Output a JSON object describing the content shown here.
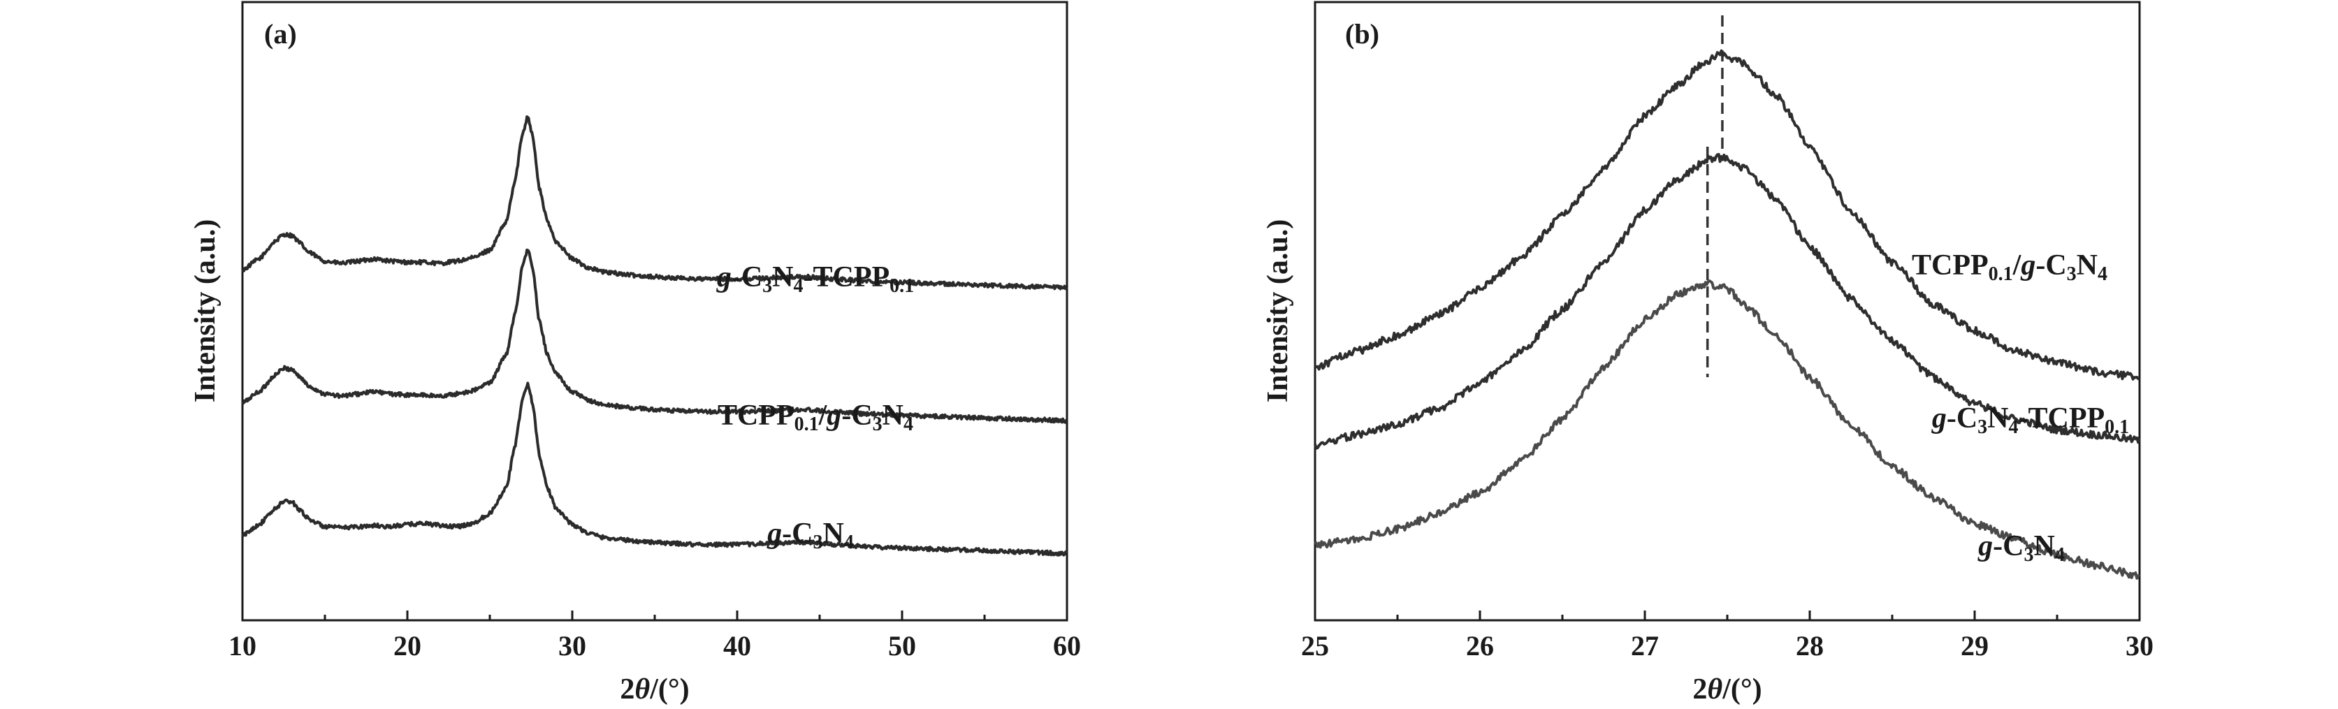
{
  "chart_data": [
    {
      "panel": "(a)",
      "type": "line",
      "xlabel_main": "2",
      "xlabel_theta": "θ",
      "xlabel_unit": "/(°)",
      "ylabel": "Intensity (a.u.)",
      "xlim": [
        10,
        60
      ],
      "xticks": [
        10,
        20,
        30,
        40,
        50,
        60
      ],
      "yticks_shown": false,
      "grid": false,
      "series": [
        {
          "name": "g-C3N4-TCPP0.1",
          "label_parts": [
            [
              "g",
              "it"
            ],
            [
              "-C",
              ""
            ],
            [
              "3",
              "sub"
            ],
            [
              "N",
              ""
            ],
            [
              "4",
              "sub"
            ],
            [
              "-TCPP",
              ""
            ],
            [
              "0.1",
              "sub"
            ]
          ],
          "color": "#2b2b2b",
          "offset": 2.2,
          "x": [
            10,
            11,
            12,
            12.5,
            13,
            13.5,
            14,
            15,
            16,
            17,
            18,
            19,
            20,
            21,
            22,
            23,
            24,
            25,
            26,
            26.5,
            27,
            27.3,
            27.6,
            28,
            28.5,
            29,
            30,
            31,
            32,
            34,
            36,
            38,
            40,
            42,
            44,
            46,
            48,
            50,
            52,
            54,
            56,
            58,
            60
          ],
          "y": [
            0.02,
            0.12,
            0.28,
            0.34,
            0.33,
            0.26,
            0.18,
            0.1,
            0.08,
            0.1,
            0.12,
            0.1,
            0.09,
            0.09,
            0.08,
            0.1,
            0.13,
            0.2,
            0.45,
            0.8,
            1.25,
            1.4,
            1.22,
            0.75,
            0.45,
            0.28,
            0.12,
            0.04,
            0.0,
            -0.03,
            -0.05,
            -0.06,
            -0.06,
            -0.05,
            -0.04,
            -0.06,
            -0.08,
            -0.09,
            -0.1,
            -0.11,
            -0.12,
            -0.13,
            -0.14
          ]
        },
        {
          "name": "TCPP0.1/g-C3N4",
          "label_parts": [
            [
              "TCPP",
              ""
            ],
            [
              "0.1",
              "sub"
            ],
            [
              "/",
              ""
            ],
            [
              "g",
              "it"
            ],
            [
              "-C",
              ""
            ],
            [
              "3",
              "sub"
            ],
            [
              "N",
              ""
            ],
            [
              "4",
              "sub"
            ]
          ],
          "color": "#2b2b2b",
          "offset": 1.1,
          "x": [
            10,
            11,
            12,
            12.5,
            13,
            13.5,
            14,
            15,
            16,
            17,
            18,
            19,
            20,
            21,
            22,
            23,
            24,
            25,
            26,
            26.5,
            27,
            27.3,
            27.6,
            28,
            28.5,
            29,
            30,
            31,
            32,
            34,
            36,
            38,
            40,
            42,
            44,
            46,
            48,
            50,
            52,
            54,
            56,
            58,
            60
          ],
          "y": [
            0.02,
            0.12,
            0.27,
            0.33,
            0.32,
            0.25,
            0.17,
            0.1,
            0.08,
            0.1,
            0.12,
            0.1,
            0.09,
            0.09,
            0.08,
            0.1,
            0.13,
            0.2,
            0.45,
            0.8,
            1.25,
            1.4,
            1.22,
            0.75,
            0.45,
            0.28,
            0.12,
            0.04,
            0.0,
            -0.03,
            -0.05,
            -0.06,
            -0.06,
            -0.05,
            -0.04,
            -0.06,
            -0.08,
            -0.09,
            -0.1,
            -0.11,
            -0.12,
            -0.13,
            -0.14
          ]
        },
        {
          "name": "g-C3N4",
          "label_parts": [
            [
              "g",
              "it"
            ],
            [
              "-C",
              ""
            ],
            [
              "3",
              "sub"
            ],
            [
              "N",
              ""
            ],
            [
              "4",
              "sub"
            ]
          ],
          "color": "#2b2b2b",
          "offset": 0.0,
          "x": [
            10,
            11,
            12,
            12.5,
            13,
            13.5,
            14,
            15,
            16,
            17,
            18,
            19,
            20,
            21,
            22,
            23,
            24,
            25,
            26,
            26.5,
            27,
            27.3,
            27.6,
            28,
            28.5,
            29,
            30,
            31,
            32,
            34,
            36,
            38,
            40,
            42,
            44,
            46,
            48,
            50,
            52,
            54,
            56,
            58,
            60
          ],
          "y": [
            0.02,
            0.12,
            0.26,
            0.33,
            0.32,
            0.25,
            0.17,
            0.1,
            0.09,
            0.1,
            0.11,
            0.1,
            0.12,
            0.13,
            0.11,
            0.1,
            0.13,
            0.22,
            0.45,
            0.8,
            1.25,
            1.38,
            1.2,
            0.74,
            0.44,
            0.27,
            0.12,
            0.04,
            0.0,
            -0.03,
            -0.05,
            -0.06,
            -0.06,
            -0.05,
            -0.04,
            -0.06,
            -0.08,
            -0.09,
            -0.1,
            -0.11,
            -0.12,
            -0.13,
            -0.14
          ]
        }
      ]
    },
    {
      "panel": "(b)",
      "type": "line",
      "xlabel_main": "2",
      "xlabel_theta": "θ",
      "xlabel_unit": "/(°)",
      "ylabel": "Intensity (a.u.)",
      "xlim": [
        25,
        30
      ],
      "xticks": [
        25,
        26,
        27,
        28,
        29,
        30
      ],
      "yticks_shown": false,
      "grid": false,
      "annotations": [
        {
          "type": "dashed-vline",
          "x": 27.47,
          "series": "TCPP0.1/g-C3N4"
        },
        {
          "type": "dashed-vline",
          "x": 27.38,
          "series": "g-C3N4"
        }
      ],
      "series": [
        {
          "name": "TCPP0.1/g-C3N4",
          "label_parts": [
            [
              "TCPP",
              ""
            ],
            [
              "0.1",
              "sub"
            ],
            [
              "/",
              ""
            ],
            [
              "g",
              "it"
            ],
            [
              "-C",
              ""
            ],
            [
              "3",
              "sub"
            ],
            [
              "N",
              ""
            ],
            [
              "4",
              "sub"
            ]
          ],
          "color": "#2e2e2e",
          "x": [
            25,
            25.25,
            25.5,
            25.75,
            26,
            26.25,
            26.5,
            26.75,
            27,
            27.2,
            27.35,
            27.47,
            27.6,
            27.8,
            28,
            28.25,
            28.5,
            28.75,
            29,
            29.25,
            29.5,
            29.75,
            30
          ],
          "y": [
            0.22,
            0.25,
            0.28,
            0.32,
            0.37,
            0.43,
            0.51,
            0.6,
            0.7,
            0.76,
            0.8,
            0.82,
            0.8,
            0.74,
            0.64,
            0.52,
            0.42,
            0.34,
            0.29,
            0.25,
            0.23,
            0.21,
            0.2
          ]
        },
        {
          "name": "g-C3N4-TCPP0.1",
          "label_parts": [
            [
              "g",
              "it"
            ],
            [
              "-C",
              ""
            ],
            [
              "3",
              "sub"
            ],
            [
              "N",
              ""
            ],
            [
              "4",
              "sub"
            ],
            [
              "-TCPP",
              ""
            ],
            [
              "0.1",
              "sub"
            ]
          ],
          "color": "#2e2e2e",
          "x": [
            25,
            25.25,
            25.5,
            25.75,
            26,
            26.25,
            26.5,
            26.75,
            27,
            27.2,
            27.4,
            27.5,
            27.6,
            27.8,
            28,
            28.25,
            28.5,
            28.75,
            29,
            29.25,
            29.5,
            29.75,
            30
          ],
          "y": [
            0.07,
            0.09,
            0.11,
            0.14,
            0.19,
            0.25,
            0.33,
            0.42,
            0.52,
            0.58,
            0.62,
            0.62,
            0.6,
            0.54,
            0.45,
            0.35,
            0.27,
            0.2,
            0.15,
            0.12,
            0.1,
            0.09,
            0.08
          ]
        },
        {
          "name": "g-C3N4",
          "label_parts": [
            [
              "g",
              "it"
            ],
            [
              "-C",
              ""
            ],
            [
              "3",
              "sub"
            ],
            [
              "N",
              ""
            ],
            [
              "4",
              "sub"
            ]
          ],
          "color": "#4a4a4a",
          "x": [
            25,
            25.25,
            25.5,
            25.75,
            26,
            26.25,
            26.5,
            26.75,
            27,
            27.2,
            27.38,
            27.5,
            27.6,
            27.8,
            28,
            28.25,
            28.5,
            28.75,
            29,
            29.25,
            29.5,
            29.75,
            30
          ],
          "y": [
            -0.12,
            -0.11,
            -0.09,
            -0.06,
            -0.02,
            0.04,
            0.12,
            0.22,
            0.31,
            0.36,
            0.38,
            0.37,
            0.34,
            0.28,
            0.2,
            0.11,
            0.03,
            -0.03,
            -0.08,
            -0.11,
            -0.14,
            -0.16,
            -0.18
          ]
        }
      ]
    }
  ]
}
